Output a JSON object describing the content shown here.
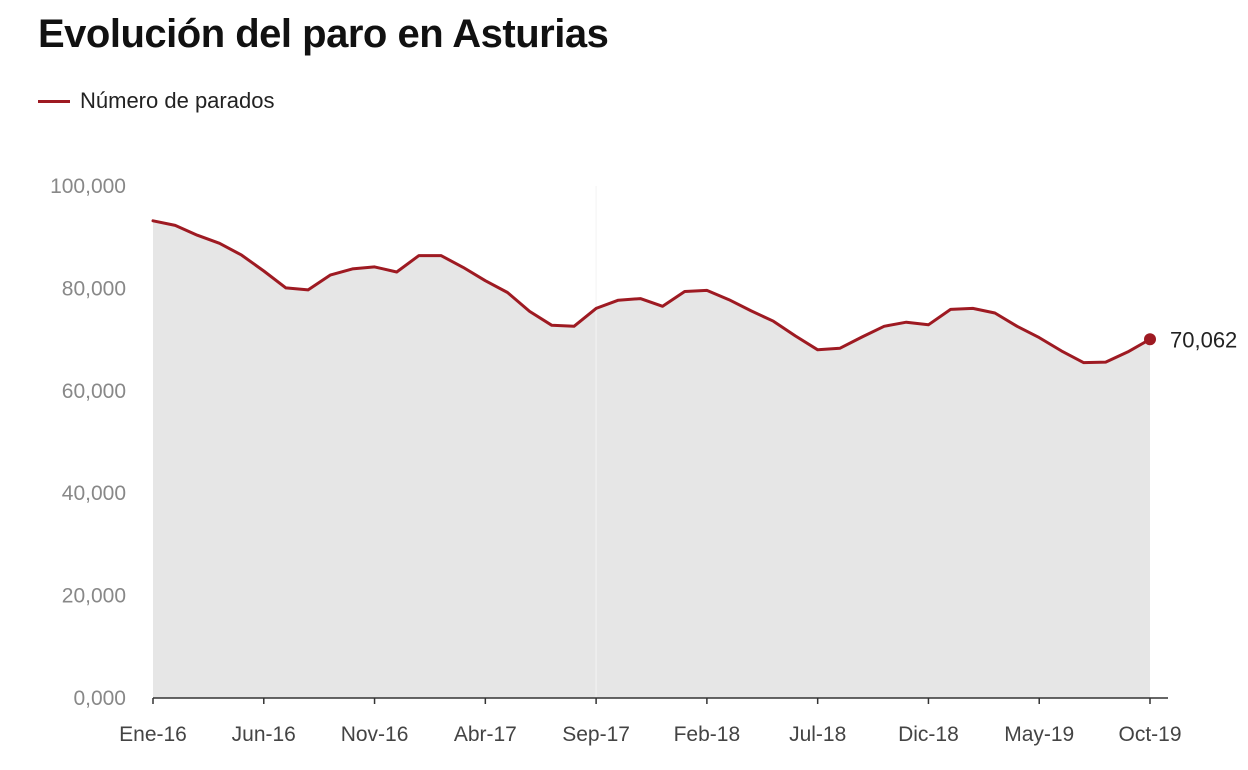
{
  "title": "Evolución del paro en Asturias",
  "legend": {
    "label": "Número de parados"
  },
  "colors": {
    "line": "#9e1a22",
    "area": "#e6e6e6",
    "axis": "#333333"
  },
  "chart_data": {
    "type": "area",
    "title": "Evolución del paro en Asturias",
    "xlabel": "",
    "ylabel": "",
    "ylim": [
      0,
      100000
    ],
    "grid": false,
    "legend_position": "top-left",
    "y_ticks": [
      "0,000",
      "20,000",
      "40,000",
      "60,000",
      "80,000",
      "100,000"
    ],
    "y_tick_values": [
      0,
      20000,
      40000,
      60000,
      80000,
      100000
    ],
    "x_tick_labels": [
      "Ene-16",
      "Jun-16",
      "Nov-16",
      "Abr-17",
      "Sep-17",
      "Feb-18",
      "Jul-18",
      "Dic-18",
      "May-19",
      "Oct-19"
    ],
    "x_tick_indices": [
      0,
      5,
      10,
      15,
      20,
      25,
      30,
      35,
      40,
      45
    ],
    "series": [
      {
        "name": "Número de parados",
        "values": [
          93200,
          92300,
          90400,
          88800,
          86500,
          83400,
          80100,
          79700,
          82600,
          83800,
          84200,
          83200,
          86400,
          86400,
          84100,
          81500,
          79200,
          75500,
          72800,
          72600,
          76100,
          77700,
          78000,
          76500,
          79400,
          79600,
          77800,
          75600,
          73600,
          70700,
          68000,
          68300,
          70500,
          72600,
          73400,
          72900,
          75900,
          76100,
          75200,
          72600,
          70400,
          67800,
          65500,
          65600,
          67600,
          70062
        ]
      }
    ],
    "end_label": "70,062"
  }
}
